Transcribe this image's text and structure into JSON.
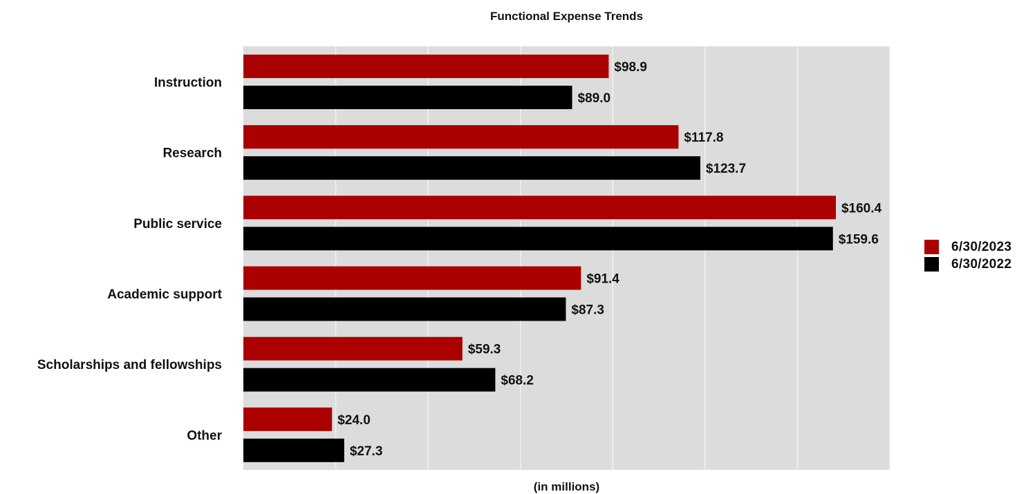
{
  "chart_data": {
    "type": "bar",
    "orientation": "horizontal",
    "title": "Functional Expense Trends",
    "xlabel": "(in millions)",
    "ylabel": "",
    "categories": [
      "Instruction",
      "Research",
      "Public service",
      "Academic support",
      "Scholarships and fellowships",
      "Other"
    ],
    "series": [
      {
        "name": "6/30/2023",
        "color": "#ab0000",
        "values": [
          98.9,
          117.8,
          160.4,
          91.4,
          59.3,
          24.0
        ],
        "labels": [
          "$98.9",
          "$117.8",
          "$160.4",
          "$91.4",
          "$59.3",
          "$24.0"
        ]
      },
      {
        "name": "6/30/2022",
        "color": "#000000",
        "values": [
          89.0,
          123.7,
          159.6,
          87.3,
          68.2,
          27.3
        ],
        "labels": [
          "$89.0",
          "$123.7",
          "$159.6",
          "$87.3",
          "$68.2",
          "$27.3"
        ]
      }
    ],
    "xlim": [
      0,
      175
    ],
    "grid": true,
    "gridlines_x": [
      25,
      50,
      75,
      100,
      125,
      150,
      175
    ],
    "plot_background": "#dcdcdc",
    "legend_position": "right"
  }
}
